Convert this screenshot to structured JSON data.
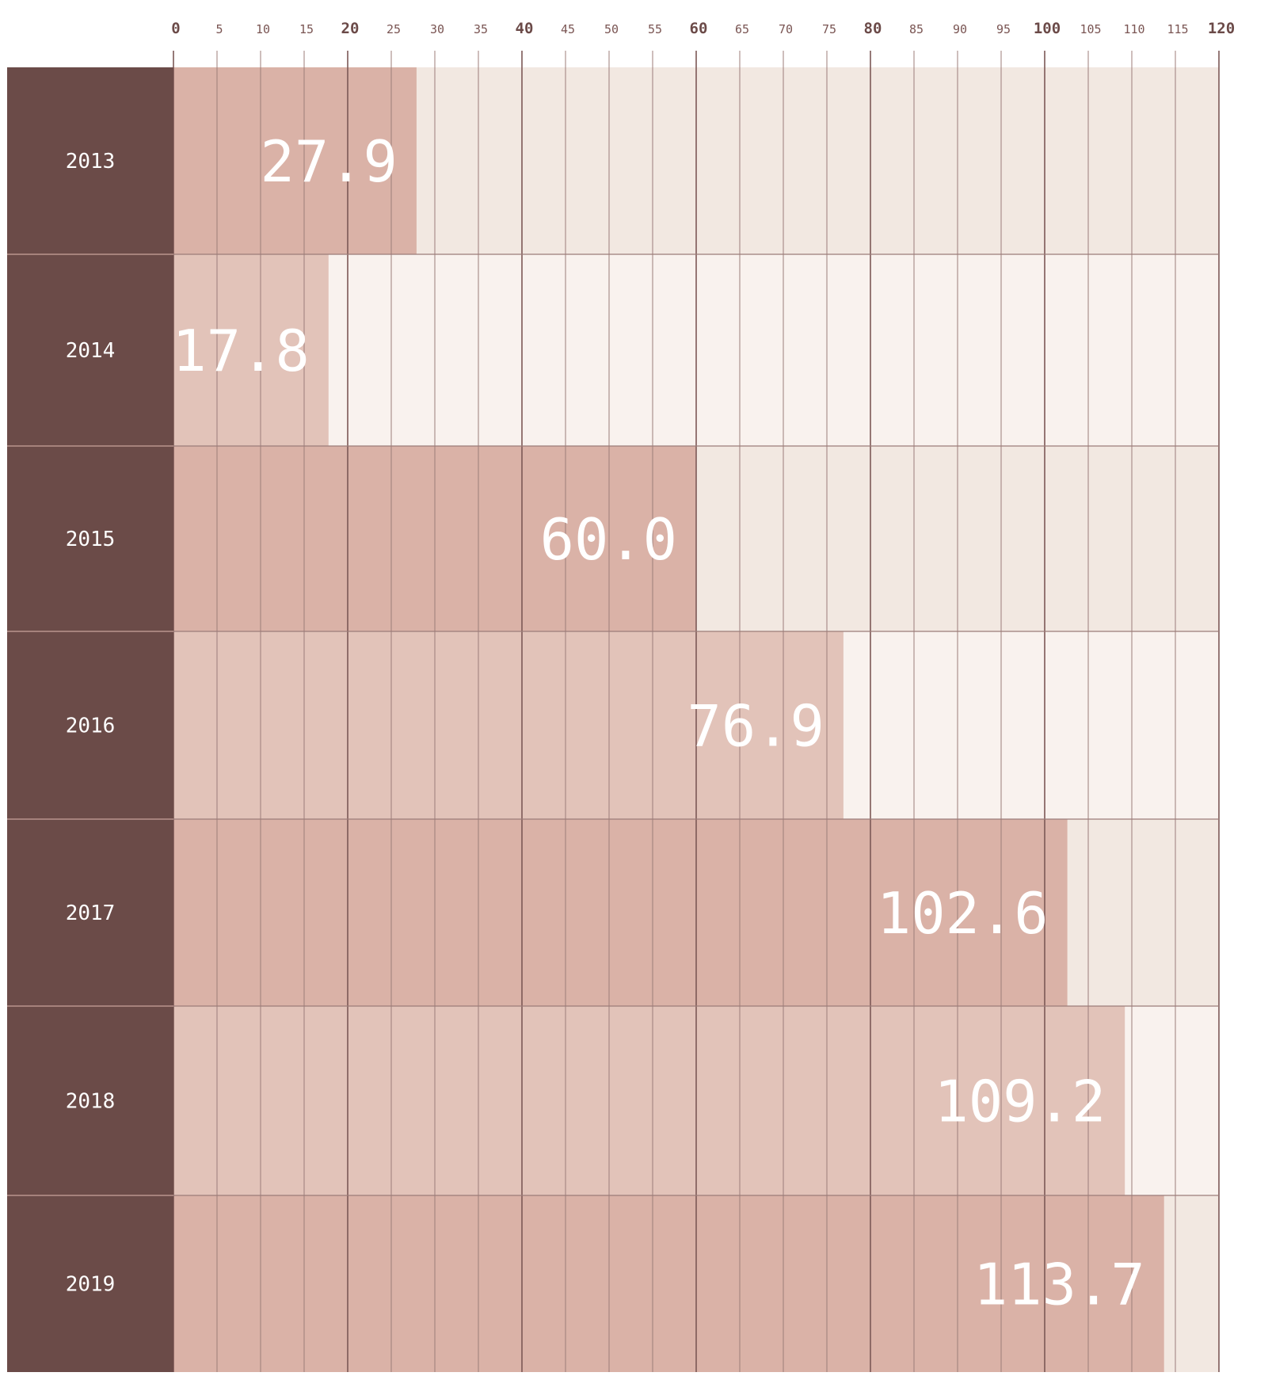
{
  "chart_data": {
    "type": "bar",
    "orientation": "horizontal",
    "title": "",
    "xlabel": "",
    "ylabel": "",
    "categories": [
      "2013",
      "2014",
      "2015",
      "2016",
      "2017",
      "2018",
      "2019"
    ],
    "values": [
      27.9,
      17.8,
      60.0,
      76.9,
      102.6,
      109.2,
      113.7
    ],
    "value_labels": [
      "27.9",
      "17.8",
      "60.0",
      "76.9",
      "102.6",
      "109.2",
      "113.7"
    ],
    "xlim": [
      0,
      120
    ],
    "x_ticks": [
      0,
      5,
      10,
      15,
      20,
      25,
      30,
      35,
      40,
      45,
      50,
      55,
      60,
      65,
      70,
      75,
      80,
      85,
      90,
      95,
      100,
      105,
      110,
      115,
      120
    ],
    "major_ticks": [
      0,
      20,
      40,
      60,
      80,
      100,
      120
    ],
    "grid": true,
    "legend": "none",
    "colors": {
      "category_band": "#6b4b48",
      "bar_dark": "#dab2a7",
      "bar_light": "#e2c3b9",
      "track_dark": "#f2e8e1",
      "track_light": "#f9f2ee",
      "grid_minor": "#9c7d7a",
      "grid_major": "#7c5856",
      "tick_text": "#7a5553",
      "label_text": "#ffffff"
    }
  }
}
